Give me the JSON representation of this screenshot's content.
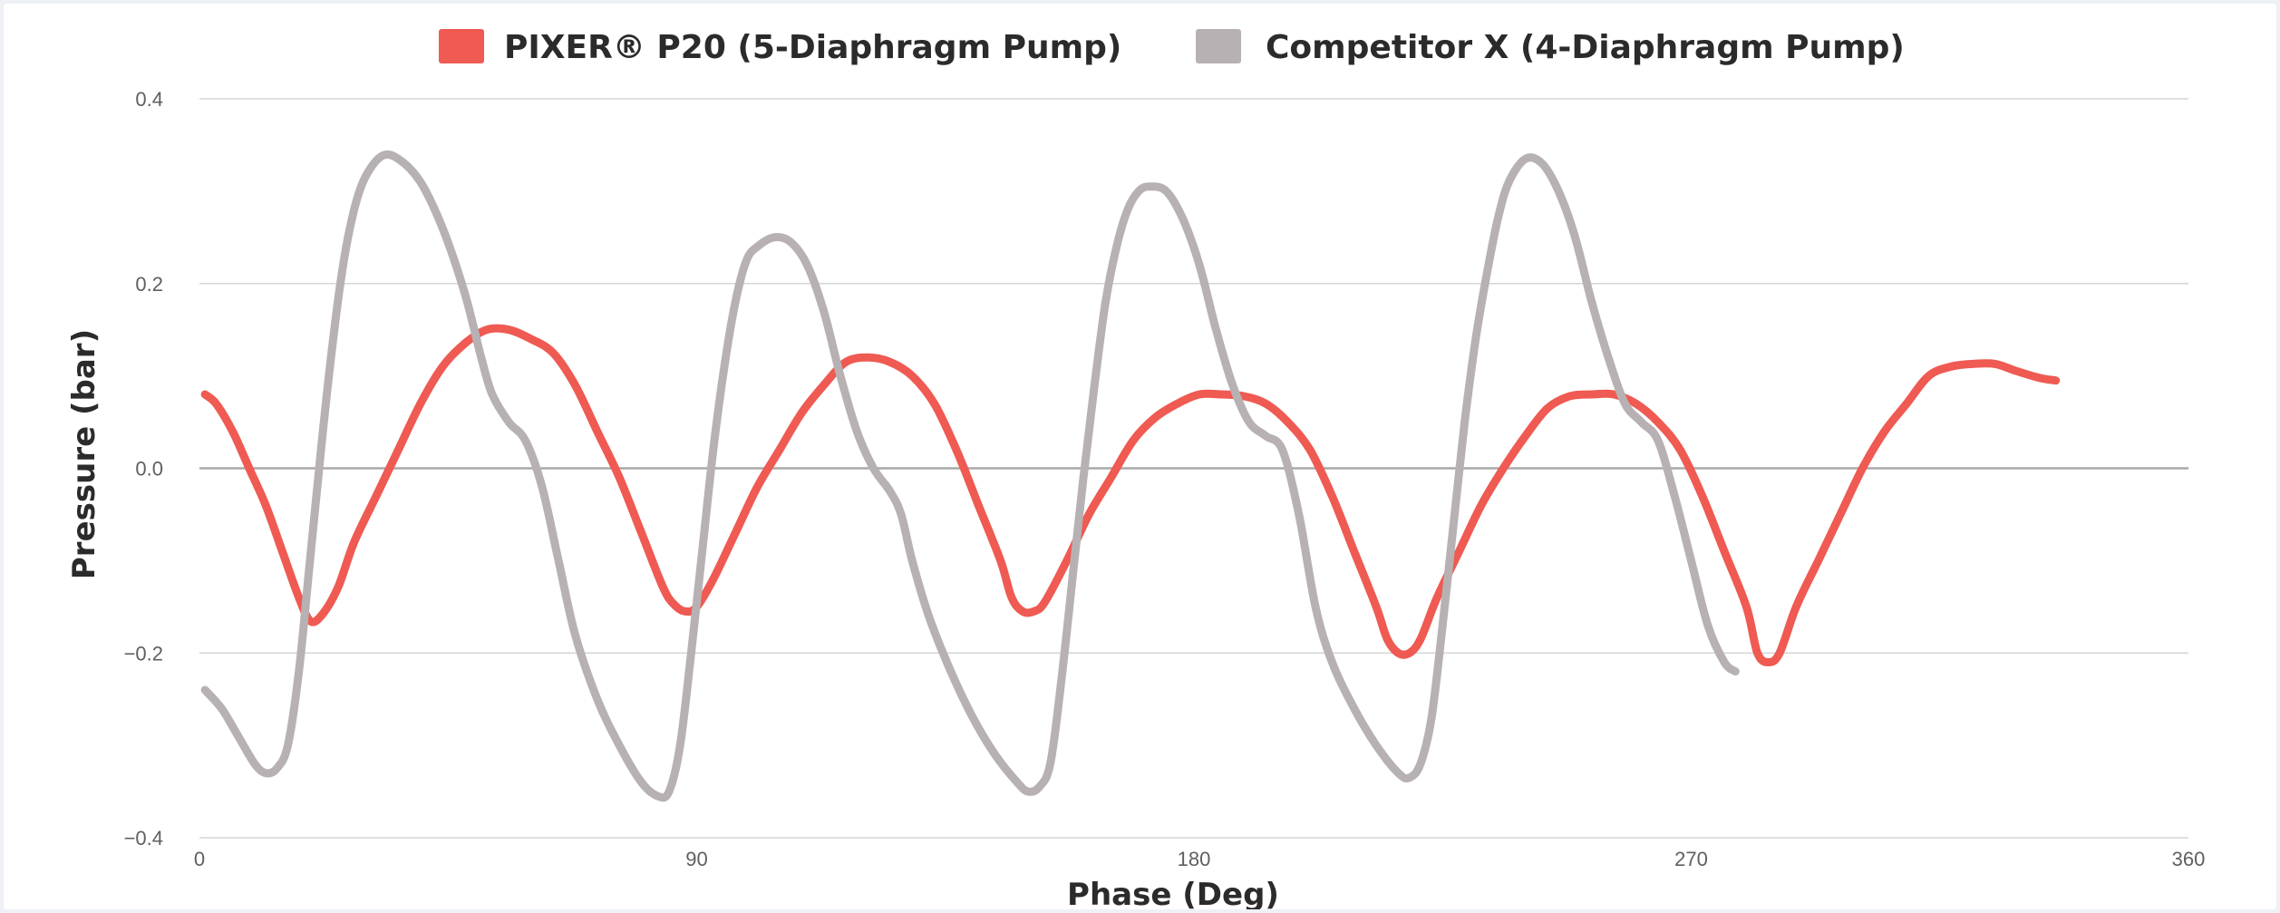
{
  "chart_data": {
    "type": "line",
    "title": "",
    "xlabel": "Phase (Deg)",
    "ylabel": "Pressure (bar)",
    "xlim": [
      0,
      360
    ],
    "ylim": [
      -0.4,
      0.4
    ],
    "x_ticks": [
      0,
      90,
      180,
      270,
      360
    ],
    "x_tick_labels": [
      "0",
      "90",
      "180",
      "270",
      "360"
    ],
    "y_ticks": [
      0.4,
      0.2,
      0.0,
      -0.2,
      -0.4
    ],
    "y_tick_labels": [
      "0.4",
      "0.2",
      "0.0",
      "−0.2",
      "−0.4"
    ],
    "grid": true,
    "legend_position": "top-center",
    "series": [
      {
        "name": "PIXER® P20 (5-Diaphragm Pump)",
        "color": "#ef5a52",
        "points": [
          [
            1,
            0.08
          ],
          [
            3,
            0.07
          ],
          [
            6,
            0.04
          ],
          [
            9,
            0.0
          ],
          [
            12,
            -0.04
          ],
          [
            15,
            -0.09
          ],
          [
            18,
            -0.14
          ],
          [
            20,
            -0.165
          ],
          [
            22,
            -0.16
          ],
          [
            25,
            -0.13
          ],
          [
            28,
            -0.08
          ],
          [
            32,
            -0.03
          ],
          [
            36,
            0.02
          ],
          [
            40,
            0.07
          ],
          [
            44,
            0.11
          ],
          [
            48,
            0.135
          ],
          [
            52,
            0.15
          ],
          [
            56,
            0.15
          ],
          [
            60,
            0.14
          ],
          [
            64,
            0.125
          ],
          [
            68,
            0.09
          ],
          [
            72,
            0.04
          ],
          [
            76,
            -0.01
          ],
          [
            80,
            -0.07
          ],
          [
            84,
            -0.13
          ],
          [
            86,
            -0.148
          ],
          [
            88,
            -0.155
          ],
          [
            90,
            -0.15
          ],
          [
            93,
            -0.12
          ],
          [
            97,
            -0.07
          ],
          [
            101,
            -0.02
          ],
          [
            105,
            0.02
          ],
          [
            109,
            0.06
          ],
          [
            113,
            0.09
          ],
          [
            117,
            0.115
          ],
          [
            121,
            0.12
          ],
          [
            125,
            0.115
          ],
          [
            129,
            0.1
          ],
          [
            133,
            0.07
          ],
          [
            137,
            0.02
          ],
          [
            141,
            -0.04
          ],
          [
            145,
            -0.1
          ],
          [
            147,
            -0.14
          ],
          [
            149,
            -0.155
          ],
          [
            151,
            -0.155
          ],
          [
            153,
            -0.145
          ],
          [
            157,
            -0.1
          ],
          [
            161,
            -0.05
          ],
          [
            165,
            -0.01
          ],
          [
            169,
            0.03
          ],
          [
            173,
            0.055
          ],
          [
            177,
            0.07
          ],
          [
            181,
            0.08
          ],
          [
            185,
            0.08
          ],
          [
            189,
            0.078
          ],
          [
            193,
            0.07
          ],
          [
            197,
            0.05
          ],
          [
            201,
            0.02
          ],
          [
            205,
            -0.03
          ],
          [
            209,
            -0.09
          ],
          [
            213,
            -0.15
          ],
          [
            215,
            -0.185
          ],
          [
            217,
            -0.2
          ],
          [
            219,
            -0.2
          ],
          [
            221,
            -0.185
          ],
          [
            224,
            -0.14
          ],
          [
            228,
            -0.09
          ],
          [
            232,
            -0.04
          ],
          [
            236,
            0.0
          ],
          [
            240,
            0.035
          ],
          [
            244,
            0.065
          ],
          [
            248,
            0.078
          ],
          [
            252,
            0.08
          ],
          [
            256,
            0.08
          ],
          [
            260,
            0.07
          ],
          [
            264,
            0.05
          ],
          [
            268,
            0.02
          ],
          [
            272,
            -0.03
          ],
          [
            276,
            -0.09
          ],
          [
            280,
            -0.15
          ],
          [
            282,
            -0.2
          ],
          [
            284,
            -0.21
          ],
          [
            286,
            -0.2
          ],
          [
            289,
            -0.15
          ],
          [
            293,
            -0.1
          ],
          [
            297,
            -0.05
          ],
          [
            301,
            0.0
          ],
          [
            305,
            0.04
          ],
          [
            309,
            0.07
          ],
          [
            313,
            0.1
          ],
          [
            317,
            0.11
          ],
          [
            321,
            0.113
          ],
          [
            325,
            0.113
          ],
          [
            329,
            0.105
          ],
          [
            333,
            0.098
          ],
          [
            336,
            0.095
          ]
        ]
      },
      {
        "name": "Competitor X (4-Diaphragm Pump)",
        "color": "#b7b1b4",
        "points": [
          [
            1,
            -0.24
          ],
          [
            4,
            -0.26
          ],
          [
            7,
            -0.29
          ],
          [
            10,
            -0.32
          ],
          [
            12,
            -0.33
          ],
          [
            14,
            -0.325
          ],
          [
            16,
            -0.3
          ],
          [
            18,
            -0.22
          ],
          [
            20,
            -0.1
          ],
          [
            22,
            0.02
          ],
          [
            24,
            0.13
          ],
          [
            26,
            0.22
          ],
          [
            28,
            0.28
          ],
          [
            30,
            0.315
          ],
          [
            33,
            0.338
          ],
          [
            36,
            0.335
          ],
          [
            40,
            0.31
          ],
          [
            44,
            0.26
          ],
          [
            48,
            0.19
          ],
          [
            51,
            0.12
          ],
          [
            53,
            0.08
          ],
          [
            56,
            0.05
          ],
          [
            59,
            0.03
          ],
          [
            62,
            -0.02
          ],
          [
            65,
            -0.1
          ],
          [
            68,
            -0.18
          ],
          [
            72,
            -0.25
          ],
          [
            76,
            -0.3
          ],
          [
            80,
            -0.34
          ],
          [
            83,
            -0.355
          ],
          [
            85,
            -0.35
          ],
          [
            87,
            -0.3
          ],
          [
            89,
            -0.2
          ],
          [
            91,
            -0.09
          ],
          [
            93,
            0.02
          ],
          [
            95,
            0.11
          ],
          [
            97,
            0.18
          ],
          [
            99,
            0.225
          ],
          [
            101,
            0.24
          ],
          [
            104,
            0.25
          ],
          [
            107,
            0.245
          ],
          [
            110,
            0.22
          ],
          [
            113,
            0.17
          ],
          [
            116,
            0.1
          ],
          [
            119,
            0.04
          ],
          [
            122,
            0.0
          ],
          [
            125,
            -0.025
          ],
          [
            127,
            -0.05
          ],
          [
            129,
            -0.1
          ],
          [
            132,
            -0.16
          ],
          [
            136,
            -0.22
          ],
          [
            140,
            -0.27
          ],
          [
            144,
            -0.31
          ],
          [
            148,
            -0.34
          ],
          [
            150,
            -0.35
          ],
          [
            152,
            -0.345
          ],
          [
            154,
            -0.32
          ],
          [
            156,
            -0.23
          ],
          [
            158,
            -0.12
          ],
          [
            160,
            -0.01
          ],
          [
            162,
            0.09
          ],
          [
            164,
            0.18
          ],
          [
            166,
            0.24
          ],
          [
            168,
            0.28
          ],
          [
            170,
            0.3
          ],
          [
            172,
            0.305
          ],
          [
            175,
            0.3
          ],
          [
            178,
            0.27
          ],
          [
            181,
            0.22
          ],
          [
            184,
            0.15
          ],
          [
            187,
            0.09
          ],
          [
            190,
            0.05
          ],
          [
            193,
            0.035
          ],
          [
            196,
            0.02
          ],
          [
            199,
            -0.05
          ],
          [
            202,
            -0.15
          ],
          [
            205,
            -0.21
          ],
          [
            209,
            -0.26
          ],
          [
            213,
            -0.3
          ],
          [
            217,
            -0.33
          ],
          [
            219,
            -0.335
          ],
          [
            221,
            -0.32
          ],
          [
            223,
            -0.27
          ],
          [
            225,
            -0.17
          ],
          [
            227,
            -0.06
          ],
          [
            229,
            0.05
          ],
          [
            231,
            0.14
          ],
          [
            233,
            0.21
          ],
          [
            235,
            0.27
          ],
          [
            237,
            0.31
          ],
          [
            240,
            0.335
          ],
          [
            243,
            0.33
          ],
          [
            246,
            0.3
          ],
          [
            249,
            0.25
          ],
          [
            252,
            0.18
          ],
          [
            255,
            0.12
          ],
          [
            258,
            0.07
          ],
          [
            261,
            0.05
          ],
          [
            264,
            0.03
          ],
          [
            267,
            -0.03
          ],
          [
            270,
            -0.1
          ],
          [
            273,
            -0.17
          ],
          [
            276,
            -0.21
          ],
          [
            278,
            -0.22
          ]
        ]
      }
    ]
  }
}
